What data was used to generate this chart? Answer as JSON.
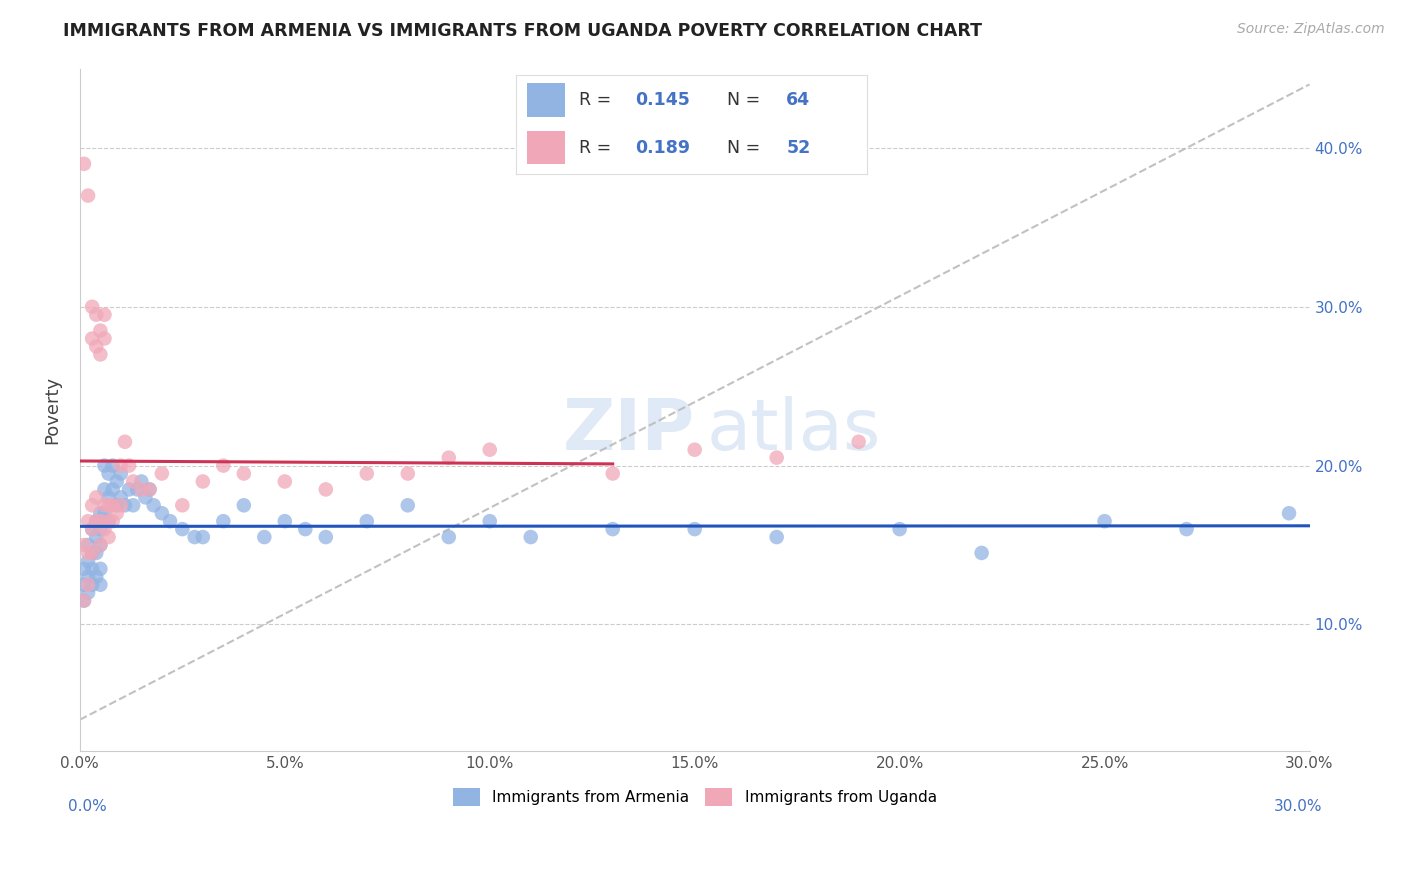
{
  "title": "IMMIGRANTS FROM ARMENIA VS IMMIGRANTS FROM UGANDA POVERTY CORRELATION CHART",
  "source": "Source: ZipAtlas.com",
  "ylabel": "Poverty",
  "legend_label1": "Immigrants from Armenia",
  "legend_label2": "Immigrants from Uganda",
  "r1": 0.145,
  "n1": 64,
  "r2": 0.189,
  "n2": 52,
  "xlim": [
    0.0,
    0.3
  ],
  "ylim": [
    0.02,
    0.45
  ],
  "xticks": [
    0.0,
    0.05,
    0.1,
    0.15,
    0.2,
    0.25,
    0.3
  ],
  "yticks": [
    0.1,
    0.2,
    0.3,
    0.4
  ],
  "color_blue": "#92b4e3",
  "color_pink": "#f0a8b8",
  "color_blue_line": "#2255bb",
  "color_pink_line": "#cc3355",
  "color_dashed": "#bbbbbb",
  "watermark_zip": "ZIP",
  "watermark_atlas": "atlas",
  "armenia_x": [
    0.001,
    0.001,
    0.001,
    0.002,
    0.002,
    0.002,
    0.002,
    0.003,
    0.003,
    0.003,
    0.003,
    0.004,
    0.004,
    0.004,
    0.004,
    0.005,
    0.005,
    0.005,
    0.005,
    0.005,
    0.006,
    0.006,
    0.006,
    0.007,
    0.007,
    0.007,
    0.008,
    0.008,
    0.009,
    0.009,
    0.01,
    0.01,
    0.011,
    0.012,
    0.013,
    0.014,
    0.015,
    0.016,
    0.017,
    0.018,
    0.02,
    0.022,
    0.025,
    0.028,
    0.03,
    0.035,
    0.04,
    0.045,
    0.05,
    0.055,
    0.06,
    0.07,
    0.08,
    0.09,
    0.1,
    0.11,
    0.13,
    0.15,
    0.17,
    0.2,
    0.22,
    0.25,
    0.27,
    0.295
  ],
  "armenia_y": [
    0.135,
    0.125,
    0.115,
    0.15,
    0.14,
    0.13,
    0.12,
    0.16,
    0.145,
    0.135,
    0.125,
    0.165,
    0.155,
    0.145,
    0.13,
    0.17,
    0.16,
    0.15,
    0.135,
    0.125,
    0.2,
    0.185,
    0.17,
    0.195,
    0.18,
    0.165,
    0.2,
    0.185,
    0.19,
    0.175,
    0.195,
    0.18,
    0.175,
    0.185,
    0.175,
    0.185,
    0.19,
    0.18,
    0.185,
    0.175,
    0.17,
    0.165,
    0.16,
    0.155,
    0.155,
    0.165,
    0.175,
    0.155,
    0.165,
    0.16,
    0.155,
    0.165,
    0.175,
    0.155,
    0.165,
    0.155,
    0.16,
    0.16,
    0.155,
    0.16,
    0.145,
    0.165,
    0.16,
    0.17
  ],
  "uganda_x": [
    0.001,
    0.001,
    0.001,
    0.002,
    0.002,
    0.002,
    0.002,
    0.003,
    0.003,
    0.003,
    0.003,
    0.003,
    0.004,
    0.004,
    0.004,
    0.004,
    0.005,
    0.005,
    0.005,
    0.005,
    0.006,
    0.006,
    0.006,
    0.006,
    0.007,
    0.007,
    0.007,
    0.008,
    0.008,
    0.009,
    0.01,
    0.01,
    0.011,
    0.012,
    0.013,
    0.015,
    0.017,
    0.02,
    0.025,
    0.03,
    0.035,
    0.04,
    0.05,
    0.06,
    0.07,
    0.08,
    0.09,
    0.1,
    0.13,
    0.15,
    0.17,
    0.19
  ],
  "uganda_y": [
    0.39,
    0.15,
    0.115,
    0.37,
    0.165,
    0.145,
    0.125,
    0.3,
    0.28,
    0.175,
    0.16,
    0.145,
    0.295,
    0.275,
    0.18,
    0.165,
    0.285,
    0.27,
    0.165,
    0.15,
    0.295,
    0.28,
    0.175,
    0.16,
    0.175,
    0.165,
    0.155,
    0.175,
    0.165,
    0.17,
    0.2,
    0.175,
    0.215,
    0.2,
    0.19,
    0.185,
    0.185,
    0.195,
    0.175,
    0.19,
    0.2,
    0.195,
    0.19,
    0.185,
    0.195,
    0.195,
    0.205,
    0.21,
    0.195,
    0.21,
    0.205,
    0.215
  ]
}
